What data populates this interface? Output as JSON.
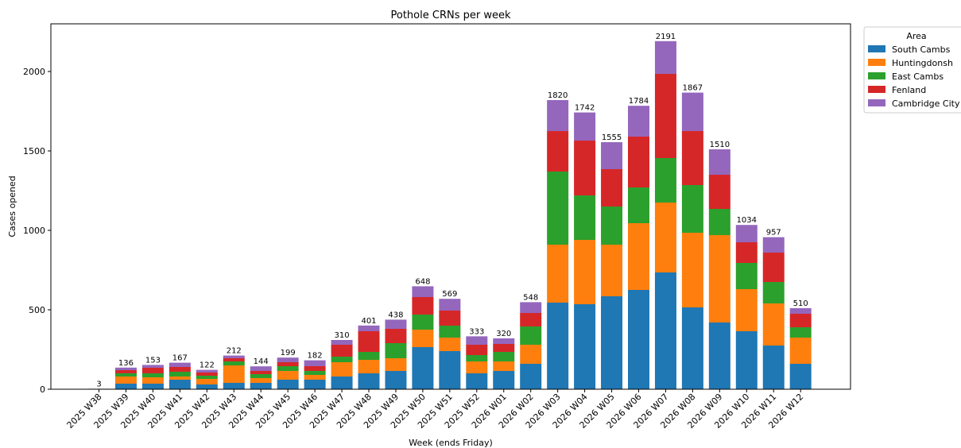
{
  "chart_data": {
    "type": "bar",
    "stacked": true,
    "title": "Pothole CRNs per week",
    "xlabel": "Week (ends Friday)",
    "ylabel": "Cases opened",
    "ylim": [
      0,
      2300
    ],
    "yticks": [
      0,
      500,
      1000,
      1500,
      2000
    ],
    "grid": false,
    "legend_position": "top-right, outside plot",
    "legend_title": "Area",
    "categories": [
      "2025 W38",
      "2025 W39",
      "2025 W40",
      "2025 W41",
      "2025 W42",
      "2025 W43",
      "2025 W44",
      "2025 W45",
      "2025 W46",
      "2025 W47",
      "2025 W48",
      "2025 W49",
      "2025 W50",
      "2025 W51",
      "2025 W52",
      "2026 W01",
      "2026 W02",
      "2026 W03",
      "2026 W04",
      "2026 W05",
      "2026 W06",
      "2026 W07",
      "2026 W08",
      "2026 W09",
      "2026 W10",
      "2026 W11",
      "2026 W12"
    ],
    "series": [
      {
        "name": "South Cambs",
        "color": "#1f77b4",
        "values": [
          1,
          35,
          35,
          60,
          30,
          40,
          40,
          60,
          60,
          80,
          100,
          115,
          265,
          240,
          100,
          115,
          160,
          545,
          535,
          585,
          625,
          735,
          515,
          420,
          365,
          275,
          160
        ]
      },
      {
        "name": "Huntingdonsh",
        "color": "#ff7f0e",
        "values": [
          1,
          45,
          40,
          20,
          35,
          110,
          30,
          55,
          30,
          90,
          85,
          80,
          110,
          85,
          75,
          60,
          120,
          365,
          405,
          325,
          420,
          440,
          470,
          550,
          265,
          265,
          165
        ]
      },
      {
        "name": "East Cambs",
        "color": "#2ca02c",
        "values": [
          0,
          20,
          25,
          30,
          20,
          25,
          25,
          30,
          25,
          35,
          50,
          95,
          95,
          75,
          40,
          60,
          115,
          460,
          280,
          240,
          225,
          280,
          300,
          165,
          165,
          135,
          65
        ]
      },
      {
        "name": "Fenland",
        "color": "#d62728",
        "values": [
          0,
          20,
          35,
          30,
          20,
          20,
          20,
          25,
          30,
          75,
          130,
          90,
          110,
          95,
          65,
          50,
          85,
          255,
          345,
          235,
          320,
          530,
          340,
          215,
          130,
          185,
          85
        ]
      },
      {
        "name": "Cambridge City",
        "color": "#9467bd",
        "values": [
          1,
          16,
          18,
          27,
          17,
          17,
          29,
          29,
          37,
          30,
          36,
          58,
          68,
          74,
          53,
          35,
          68,
          195,
          177,
          170,
          194,
          206,
          242,
          160,
          109,
          97,
          35
        ]
      }
    ],
    "totals": [
      3,
      136,
      153,
      167,
      122,
      212,
      144,
      199,
      182,
      310,
      401,
      438,
      648,
      569,
      333,
      320,
      548,
      1820,
      1742,
      1555,
      1784,
      2191,
      1867,
      1510,
      1034,
      957,
      510
    ]
  }
}
